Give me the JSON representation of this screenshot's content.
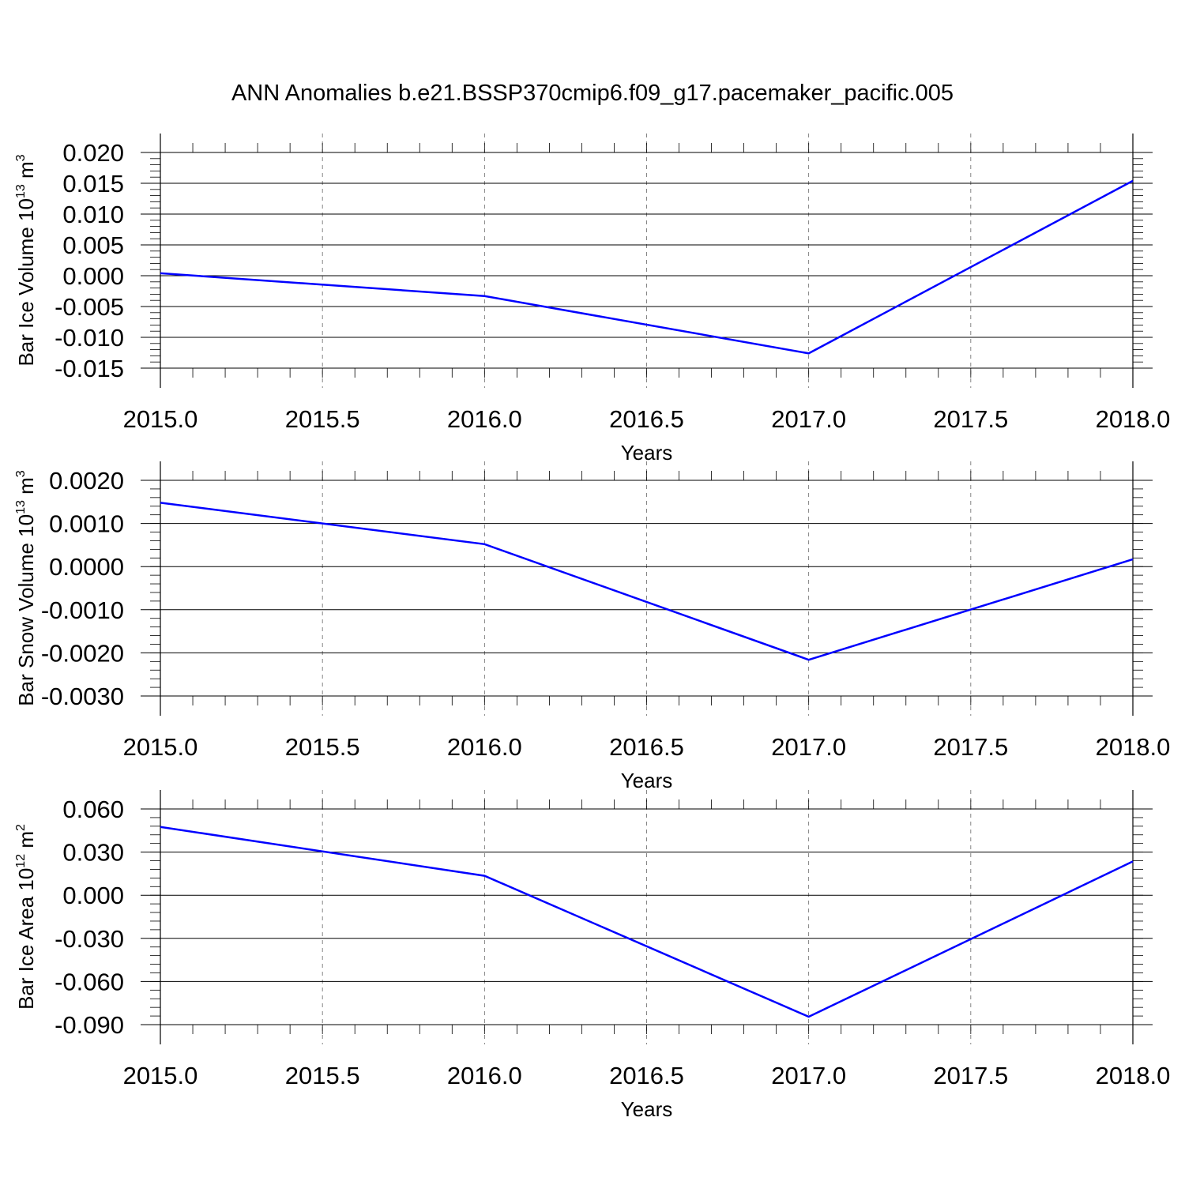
{
  "title": "ANN Anomalies b.e21.BSSP370cmip6.f09_g17.pacemaker_pacific.005",
  "chart_data": [
    {
      "type": "line",
      "title": "",
      "xlabel": "Years",
      "ylabel": "Bar Ice Volume 10",
      "ylabel_exp": "13",
      "ylabel_unit": " m",
      "ylabel_unit_exp": "3",
      "xlim": [
        2015.0,
        2018.0
      ],
      "ylim": [
        -0.015,
        0.02
      ],
      "x_ticks": [
        "2015.0",
        "2015.5",
        "2016.0",
        "2016.5",
        "2017.0",
        "2017.5",
        "2018.0"
      ],
      "y_ticks": [
        "0.020",
        "0.015",
        "0.010",
        "0.005",
        "0.000",
        "-0.005",
        "-0.010",
        "-0.015"
      ],
      "x": [
        2015,
        2016,
        2017,
        2018
      ],
      "series": [
        {
          "values": [
            0.0004,
            -0.0033,
            -0.0126,
            0.0154
          ],
          "color": "#0000ff"
        }
      ],
      "grid": "vertical-dashed"
    },
    {
      "type": "line",
      "title": "",
      "xlabel": "Years",
      "ylabel": "Bar Snow Volume 10",
      "ylabel_exp": "13",
      "ylabel_unit": " m",
      "ylabel_unit_exp": "3",
      "xlim": [
        2015.0,
        2018.0
      ],
      "ylim": [
        -0.003,
        0.002
      ],
      "x_ticks": [
        "2015.0",
        "2015.5",
        "2016.0",
        "2016.5",
        "2017.0",
        "2017.5",
        "2018.0"
      ],
      "y_ticks": [
        "0.0020",
        "0.0010",
        "0.0000",
        "-0.0010",
        "-0.0020",
        "-0.0030"
      ],
      "x": [
        2015,
        2016,
        2017,
        2018
      ],
      "series": [
        {
          "values": [
            0.00148,
            0.00052,
            -0.00216,
            0.00017
          ],
          "color": "#0000ff"
        }
      ],
      "grid": "vertical-dashed"
    },
    {
      "type": "line",
      "title": "",
      "xlabel": "Years",
      "ylabel": "Bar Ice Area 10",
      "ylabel_exp": "12",
      "ylabel_unit": " m",
      "ylabel_unit_exp": "2",
      "xlim": [
        2015.0,
        2018.0
      ],
      "ylim": [
        -0.09,
        0.06
      ],
      "x_ticks": [
        "2015.0",
        "2015.5",
        "2016.0",
        "2016.5",
        "2017.0",
        "2017.5",
        "2018.0"
      ],
      "y_ticks": [
        "0.060",
        "0.030",
        "0.000",
        "-0.030",
        "-0.060",
        "-0.090"
      ],
      "x": [
        2015,
        2016,
        2017,
        2018
      ],
      "series": [
        {
          "values": [
            0.0475,
            0.0135,
            -0.0845,
            0.0235
          ],
          "color": "#0000ff"
        }
      ],
      "grid": "vertical-dashed"
    }
  ]
}
